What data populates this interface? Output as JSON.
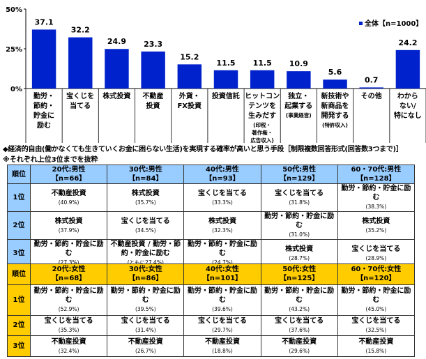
{
  "chart_data": {
    "type": "bar",
    "categories": [
      "勤労・\n節約・\n貯金に\n励む",
      "宝くじを\n当てる",
      "株式投資",
      "不動産\n投資",
      "外貨・\nFX投資",
      "投資信託",
      "ヒットコン\nテンツを\n生みだす",
      "独立・\n起業する",
      "新技術や\n新商品を\n開発する",
      "その他",
      "わから\nない/\n特になし"
    ],
    "category_notes": [
      "",
      "",
      "",
      "",
      "",
      "",
      "(印税・\n著作権・\n広告収入)",
      "(事業経営)",
      "(特許収入)",
      "",
      ""
    ],
    "series": [
      {
        "name": "全体【n=1000】",
        "values": [
          37.1,
          32.2,
          24.9,
          23.3,
          15.2,
          11.5,
          11.5,
          10.9,
          5.6,
          0.7,
          24.2
        ]
      }
    ],
    "yticks": [
      "0%",
      "25%",
      "50%"
    ],
    "ylim": [
      0,
      50
    ],
    "legend": "top-right",
    "color": "#0022cc"
  },
  "title": "◆経済的自由(働かなくても生きていくお金に困らない生活)を実現する確率が高いと思う手段［制限複数回答形式(回答数3つまで)］",
  "subtitle": "※それぞれ上位3位までを抜粋",
  "rank_header": "順位",
  "ranks": [
    "1位",
    "2位",
    "3位"
  ],
  "male": {
    "headers": [
      [
        "20代:男性",
        "【n=66】"
      ],
      [
        "30代:男性",
        "【n=84】"
      ],
      [
        "40代:男性",
        "【n=93】"
      ],
      [
        "50代:男性",
        "【n=129】"
      ],
      [
        "60・70代:男性",
        "【n=128】"
      ]
    ],
    "rows": [
      [
        [
          "不動産投資",
          "(40.9%)"
        ],
        [
          "株式投資",
          "(35.7%)"
        ],
        [
          "宝くじを当てる",
          "(33.3%)"
        ],
        [
          "宝くじを当てる",
          "(31.8%)"
        ],
        [
          "勤労・節約・貯金に励む",
          "(38.3%)"
        ]
      ],
      [
        [
          "株式投資",
          "(37.9%)"
        ],
        [
          "宝くじを当てる",
          "(34.5%)"
        ],
        [
          "株式投資",
          "(32.3%)"
        ],
        [
          "勤労・節約・貯金に励む",
          "(31.0%)"
        ],
        [
          "株式投資",
          "(35.2%)"
        ]
      ],
      [
        [
          "勤労・節約・貯金に励む",
          "(27.3%)"
        ],
        [
          "不動産投資 / 勤労・節約・貯金に励む",
          "(ともに27.4%)"
        ],
        [
          "勤労・節約・貯金に励む",
          "(24.7%)"
        ],
        [
          "株式投資",
          "(28.7%)"
        ],
        [
          "宝くじを当てる",
          "(28.9%)"
        ]
      ]
    ]
  },
  "female": {
    "headers": [
      [
        "20代:女性",
        "【n=68】"
      ],
      [
        "30代:女性",
        "【n=86】"
      ],
      [
        "40代:女性",
        "【n=101】"
      ],
      [
        "50代:女性",
        "【n=125】"
      ],
      [
        "60・70代:女性",
        "【n=120】"
      ]
    ],
    "rows": [
      [
        [
          "勤労・節約・貯金に励む",
          "(52.9%)"
        ],
        [
          "勤労・節約・貯金に励む",
          "(39.5%)"
        ],
        [
          "勤労・節約・貯金に励む",
          "(39.6%)"
        ],
        [
          "勤労・節約・貯金に励む",
          "(43.2%)"
        ],
        [
          "勤労・節約・貯金に励む",
          "(45.0%)"
        ]
      ],
      [
        [
          "宝くじを当てる",
          "(35.3%)"
        ],
        [
          "宝くじを当てる",
          "(31.4%)"
        ],
        [
          "宝くじを当てる",
          "(29.7%)"
        ],
        [
          "宝くじを当てる",
          "(37.6%)"
        ],
        [
          "宝くじを当てる",
          "(32.5%)"
        ]
      ],
      [
        [
          "不動産投資",
          "(32.4%)"
        ],
        [
          "不動産投資",
          "(26.7%)"
        ],
        [
          "不動産投資",
          "(18.8%)"
        ],
        [
          "不動産投資",
          "(29.6%)"
        ],
        [
          "不動産投資",
          "(15.8%)"
        ]
      ]
    ]
  }
}
